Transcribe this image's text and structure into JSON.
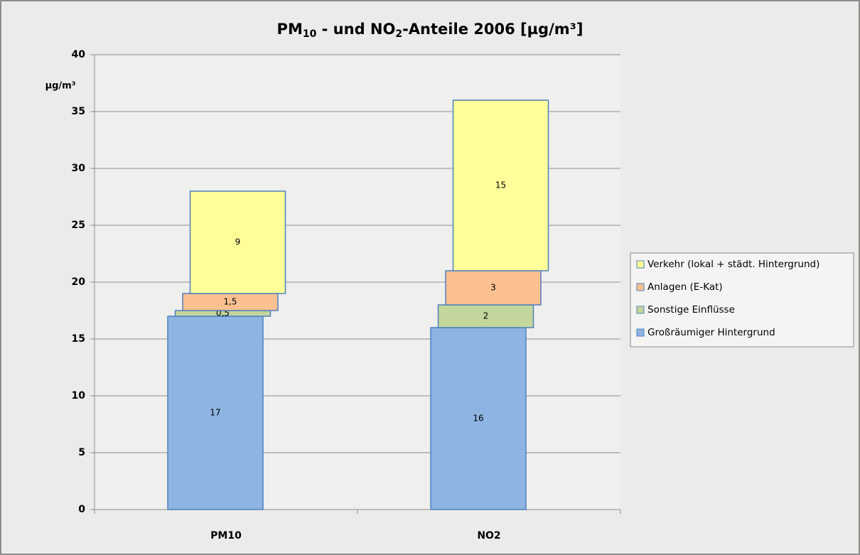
{
  "chart_data": {
    "type": "stacked_bar",
    "title": [
      "PM",
      "10",
      " - und NO",
      "2",
      "-Anteile 2006 [µg/m³]"
    ],
    "y_label": "µg/m³",
    "categories": [
      "PM10",
      "NO2"
    ],
    "series": [
      {
        "name": "Großräumiger Hintergrund",
        "color": "#8eb4e3",
        "values": [
          17,
          16
        ]
      },
      {
        "name": "Sonstige Einflüsse",
        "color": "#c3d69b",
        "values": [
          0.5,
          2
        ],
        "value_labels": [
          "0,5",
          "2"
        ]
      },
      {
        "name": "Anlagen (E-Kat)",
        "color": "#fac090",
        "values": [
          1.5,
          3
        ],
        "value_labels": [
          "1,5",
          "3"
        ]
      },
      {
        "name": "Verkehr (lokal + städt. Hintergrund)",
        "color": "#ffff99",
        "values": [
          9,
          15
        ]
      }
    ],
    "ylim": [
      0,
      40
    ],
    "yticks": [
      0,
      5,
      10,
      15,
      20,
      25,
      30,
      35,
      40
    ],
    "grid": true,
    "legend": "right"
  }
}
